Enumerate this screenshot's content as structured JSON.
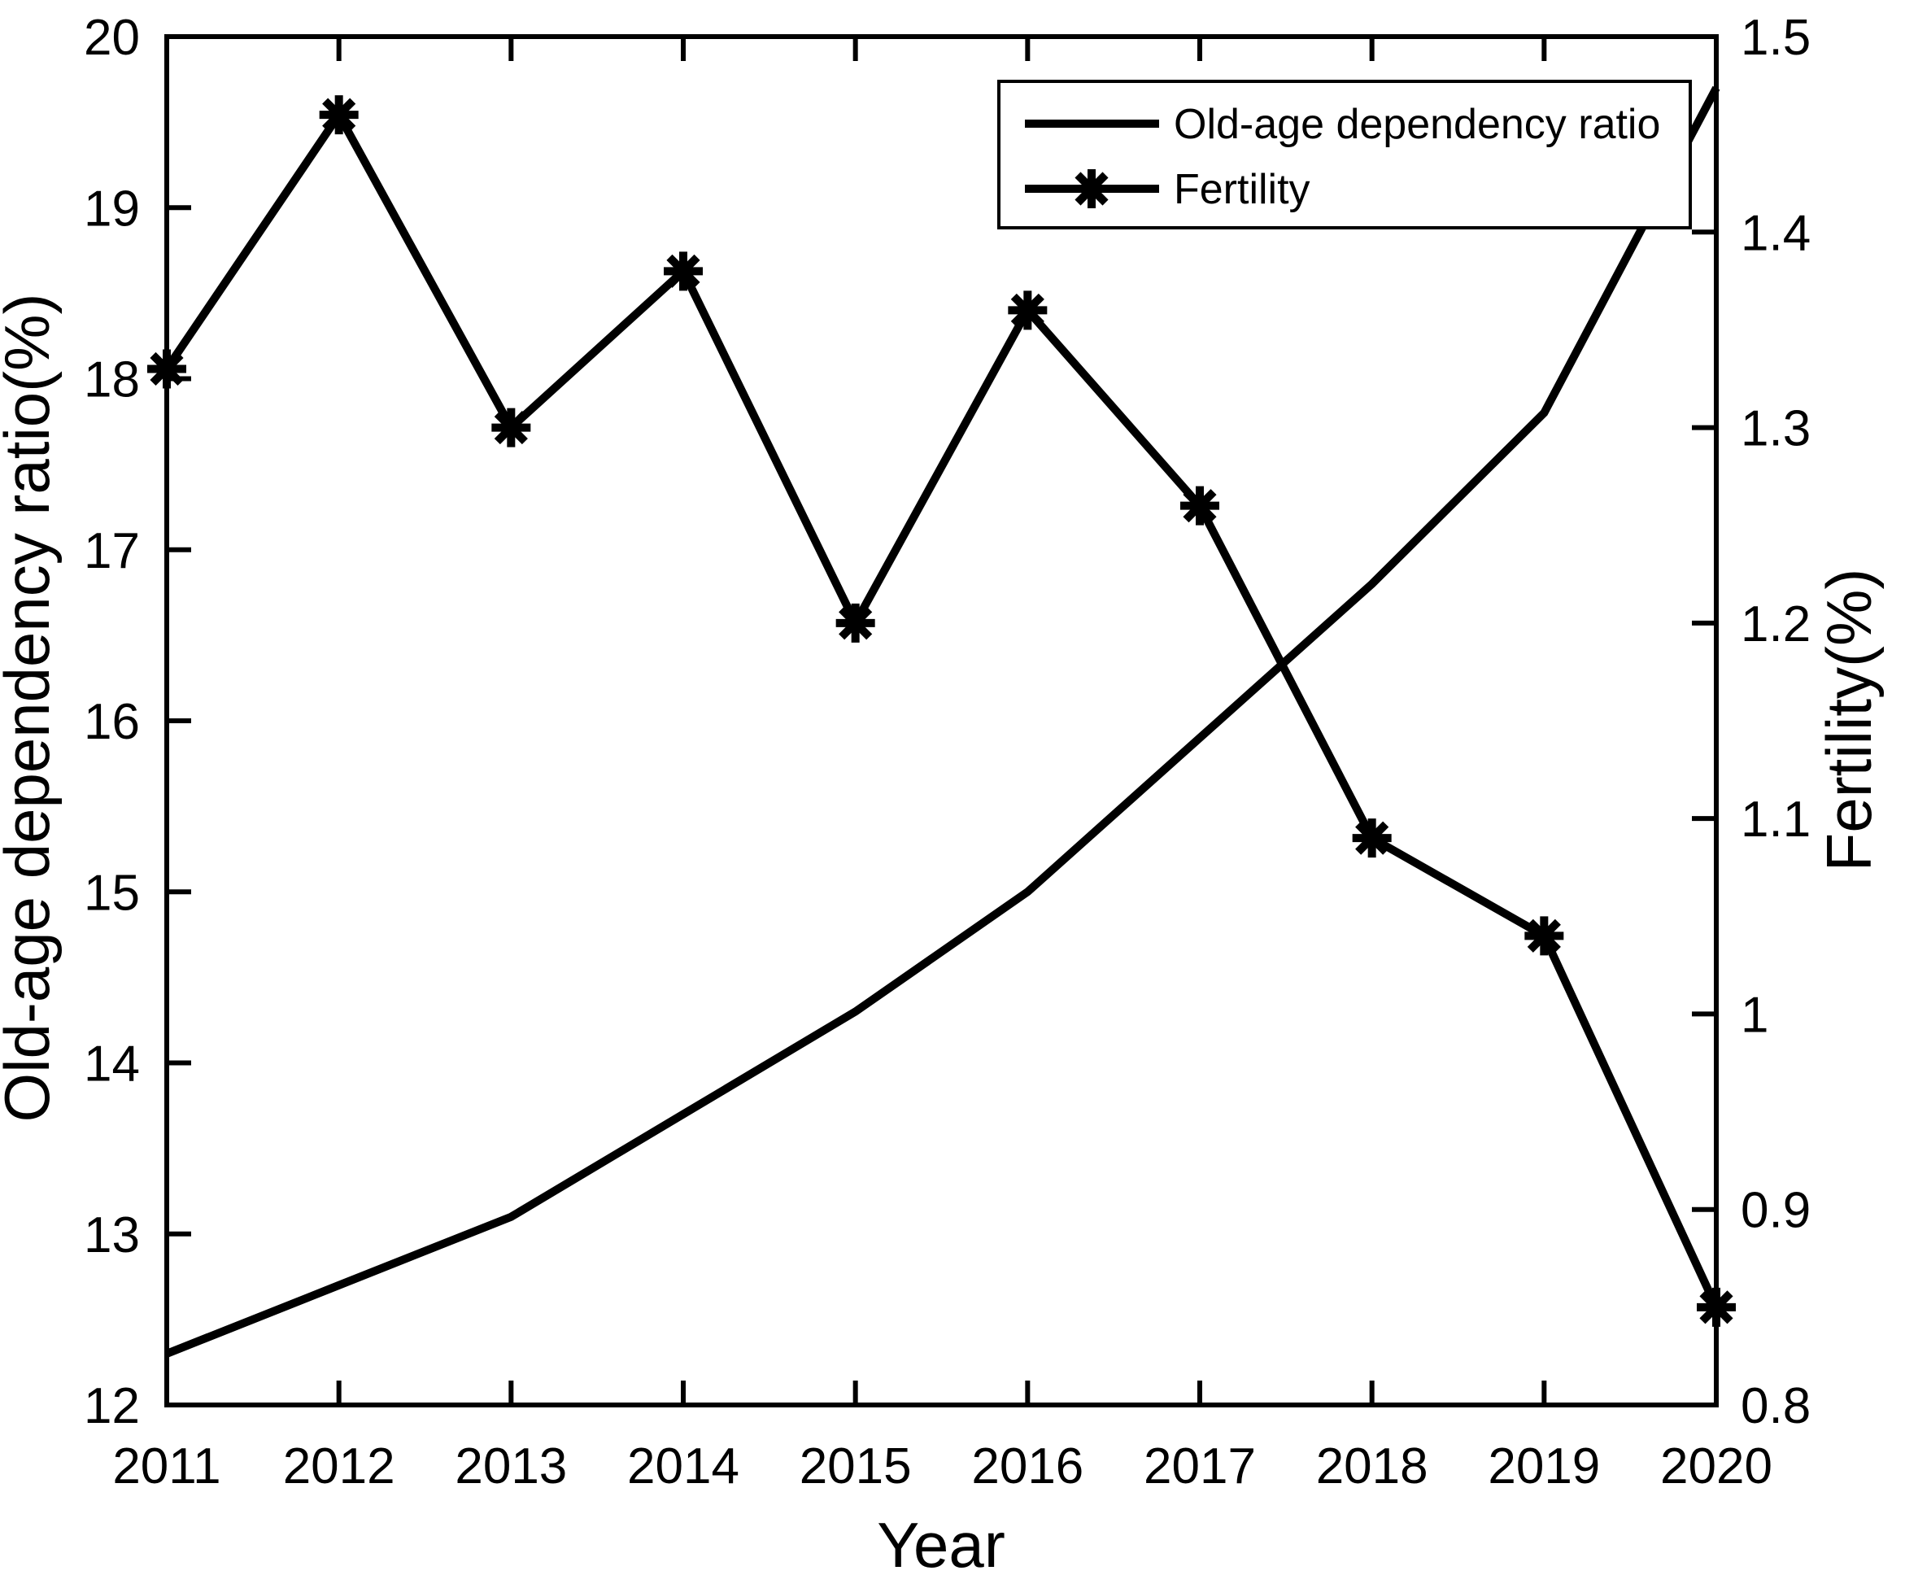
{
  "figure": {
    "background": "#ffffff",
    "foreground": "#000000"
  },
  "chart_data": {
    "type": "line",
    "title": "",
    "xlabel": "Year",
    "ylabel_left": "Old-age dependency ratio(%)",
    "ylabel_right": "Fertility(%)",
    "grid": false,
    "x": [
      2011,
      2012,
      2013,
      2014,
      2015,
      2016,
      2017,
      2018,
      2019,
      2020
    ],
    "x_tick_labels": [
      "2011",
      "2012",
      "2013",
      "2014",
      "2015",
      "2016",
      "2017",
      "2018",
      "2019",
      "2020"
    ],
    "left_axis": {
      "min": 12,
      "max": 20,
      "ticks": [
        12,
        13,
        14,
        15,
        16,
        17,
        18,
        19,
        20
      ],
      "tick_labels": [
        "12",
        "13",
        "14",
        "15",
        "16",
        "17",
        "18",
        "19",
        "20"
      ]
    },
    "right_axis": {
      "min": 0.8,
      "max": 1.5,
      "ticks": [
        0.8,
        0.9,
        1.0,
        1.1,
        1.2,
        1.3,
        1.4,
        1.5
      ],
      "tick_labels": [
        "0.8",
        "0.9",
        "1",
        "1.1",
        "1.2",
        "1.3",
        "1.4",
        "1.5"
      ]
    },
    "series": [
      {
        "name": "Old-age dependency ratio",
        "axis": "left",
        "marker": "none",
        "color": "#000000",
        "values": [
          12.3,
          12.7,
          13.1,
          13.7,
          14.3,
          15.0,
          15.9,
          16.8,
          17.8,
          19.7
        ]
      },
      {
        "name": "Fertility",
        "axis": "right",
        "marker": "asterisk",
        "color": "#000000",
        "values": [
          1.33,
          1.46,
          1.3,
          1.38,
          1.2,
          1.36,
          1.26,
          1.09,
          1.04,
          0.85
        ]
      }
    ],
    "legend": {
      "position": "top-right-inside",
      "entries": [
        "Old-age dependency ratio",
        "Fertility"
      ]
    }
  }
}
